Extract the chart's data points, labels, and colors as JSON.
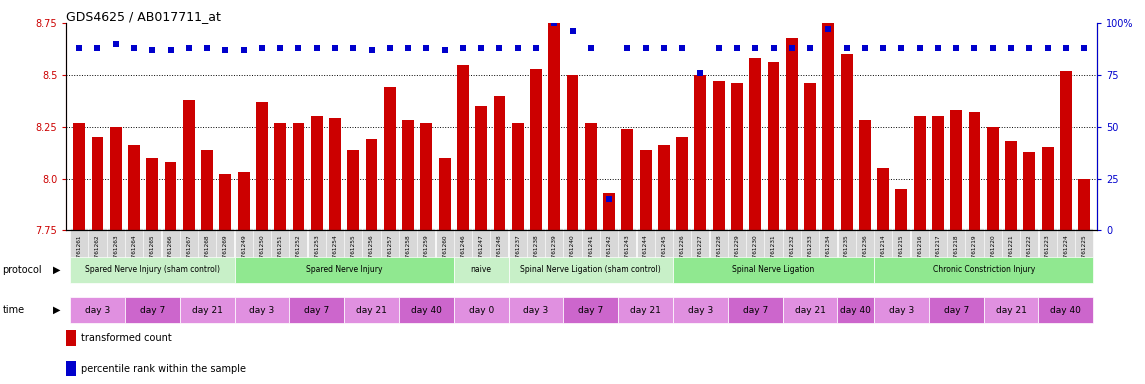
{
  "title": "GDS4625 / AB017711_at",
  "gsm_labels": [
    "GSM761261",
    "GSM761262",
    "GSM761263",
    "GSM761264",
    "GSM761265",
    "GSM761266",
    "GSM761267",
    "GSM761268",
    "GSM761269",
    "GSM761249",
    "GSM761250",
    "GSM761251",
    "GSM761252",
    "GSM761253",
    "GSM761254",
    "GSM761255",
    "GSM761256",
    "GSM761257",
    "GSM761258",
    "GSM761259",
    "GSM761260",
    "GSM761246",
    "GSM761247",
    "GSM761248",
    "GSM761237",
    "GSM761238",
    "GSM761239",
    "GSM761240",
    "GSM761241",
    "GSM761242",
    "GSM761243",
    "GSM761244",
    "GSM761245",
    "GSM761226",
    "GSM761227",
    "GSM761228",
    "GSM761229",
    "GSM761230",
    "GSM761231",
    "GSM761232",
    "GSM761233",
    "GSM761234",
    "GSM761235",
    "GSM761236",
    "GSM761214",
    "GSM761215",
    "GSM761216",
    "GSM761217",
    "GSM761218",
    "GSM761219",
    "GSM761220",
    "GSM761221",
    "GSM761222",
    "GSM761223",
    "GSM761224",
    "GSM761225"
  ],
  "bar_values": [
    8.27,
    8.2,
    8.25,
    8.16,
    8.1,
    8.08,
    8.38,
    8.14,
    8.02,
    8.03,
    8.37,
    8.27,
    8.27,
    8.3,
    8.29,
    8.14,
    8.19,
    8.44,
    8.28,
    8.27,
    8.1,
    8.55,
    8.35,
    8.4,
    8.27,
    8.53,
    8.75,
    8.5,
    8.27,
    7.93,
    8.24,
    8.14,
    8.16,
    8.2,
    8.5,
    8.47,
    8.46,
    8.58,
    8.56,
    8.68,
    8.46,
    8.75,
    8.6,
    8.28,
    8.05,
    7.95,
    8.3,
    8.3,
    8.33,
    8.32,
    8.25,
    8.18,
    8.13,
    8.15,
    8.52,
    8.0
  ],
  "percentile_values": [
    88,
    88,
    90,
    88,
    87,
    87,
    88,
    88,
    87,
    87,
    88,
    88,
    88,
    88,
    88,
    88,
    87,
    88,
    88,
    88,
    87,
    88,
    88,
    88,
    88,
    88,
    100,
    96,
    88,
    15,
    88,
    88,
    88,
    88,
    76,
    88,
    88,
    88,
    88,
    88,
    88,
    97,
    88,
    88,
    88,
    88,
    88,
    88,
    88,
    88,
    88,
    88,
    88,
    88,
    88,
    88
  ],
  "ylim_left": [
    7.75,
    8.75
  ],
  "ylim_right": [
    0,
    100
  ],
  "yticks_left": [
    7.75,
    8.0,
    8.25,
    8.5,
    8.75
  ],
  "yticks_right": [
    0,
    25,
    50,
    75,
    100
  ],
  "grid_lines": [
    8.0,
    8.25,
    8.5
  ],
  "protocol_groups": [
    {
      "label": "Spared Nerve Injury (sham control)",
      "start": 0,
      "end": 8,
      "color": "#c8f0c8"
    },
    {
      "label": "Spared Nerve Injury",
      "start": 9,
      "end": 20,
      "color": "#90e890"
    },
    {
      "label": "naive",
      "start": 21,
      "end": 23,
      "color": "#c8f0c8"
    },
    {
      "label": "Spinal Nerve Ligation (sham control)",
      "start": 24,
      "end": 32,
      "color": "#c8f0c8"
    },
    {
      "label": "Spinal Nerve Ligation",
      "start": 33,
      "end": 43,
      "color": "#90e890"
    },
    {
      "label": "Chronic Constriction Injury",
      "start": 44,
      "end": 55,
      "color": "#90e890"
    }
  ],
  "time_groups": [
    {
      "label": "day 3",
      "start": 0,
      "end": 2,
      "color": "#e090e0"
    },
    {
      "label": "day 7",
      "start": 3,
      "end": 5,
      "color": "#cc66cc"
    },
    {
      "label": "day 21",
      "start": 6,
      "end": 8,
      "color": "#e090e0"
    },
    {
      "label": "day 3",
      "start": 9,
      "end": 11,
      "color": "#e090e0"
    },
    {
      "label": "day 7",
      "start": 12,
      "end": 14,
      "color": "#cc66cc"
    },
    {
      "label": "day 21",
      "start": 15,
      "end": 17,
      "color": "#e090e0"
    },
    {
      "label": "day 40",
      "start": 18,
      "end": 20,
      "color": "#cc66cc"
    },
    {
      "label": "day 0",
      "start": 21,
      "end": 23,
      "color": "#e090e0"
    },
    {
      "label": "day 3",
      "start": 24,
      "end": 26,
      "color": "#e090e0"
    },
    {
      "label": "day 7",
      "start": 27,
      "end": 29,
      "color": "#cc66cc"
    },
    {
      "label": "day 21",
      "start": 30,
      "end": 32,
      "color": "#e090e0"
    },
    {
      "label": "day 3",
      "start": 33,
      "end": 35,
      "color": "#e090e0"
    },
    {
      "label": "day 7",
      "start": 36,
      "end": 38,
      "color": "#cc66cc"
    },
    {
      "label": "day 21",
      "start": 39,
      "end": 41,
      "color": "#e090e0"
    },
    {
      "label": "day 40",
      "start": 42,
      "end": 43,
      "color": "#cc66cc"
    },
    {
      "label": "day 3",
      "start": 44,
      "end": 46,
      "color": "#e090e0"
    },
    {
      "label": "day 7",
      "start": 47,
      "end": 49,
      "color": "#cc66cc"
    },
    {
      "label": "day 21",
      "start": 50,
      "end": 52,
      "color": "#e090e0"
    },
    {
      "label": "day 40",
      "start": 53,
      "end": 55,
      "color": "#cc66cc"
    }
  ],
  "bar_color": "#cc0000",
  "percentile_color": "#0000cc",
  "left_axis_color": "#cc0000",
  "right_axis_color": "#0000cc",
  "bg_color": "#ffffff",
  "plot_bg_color": "#ffffff",
  "tick_bg_color": "#d8d8d8"
}
